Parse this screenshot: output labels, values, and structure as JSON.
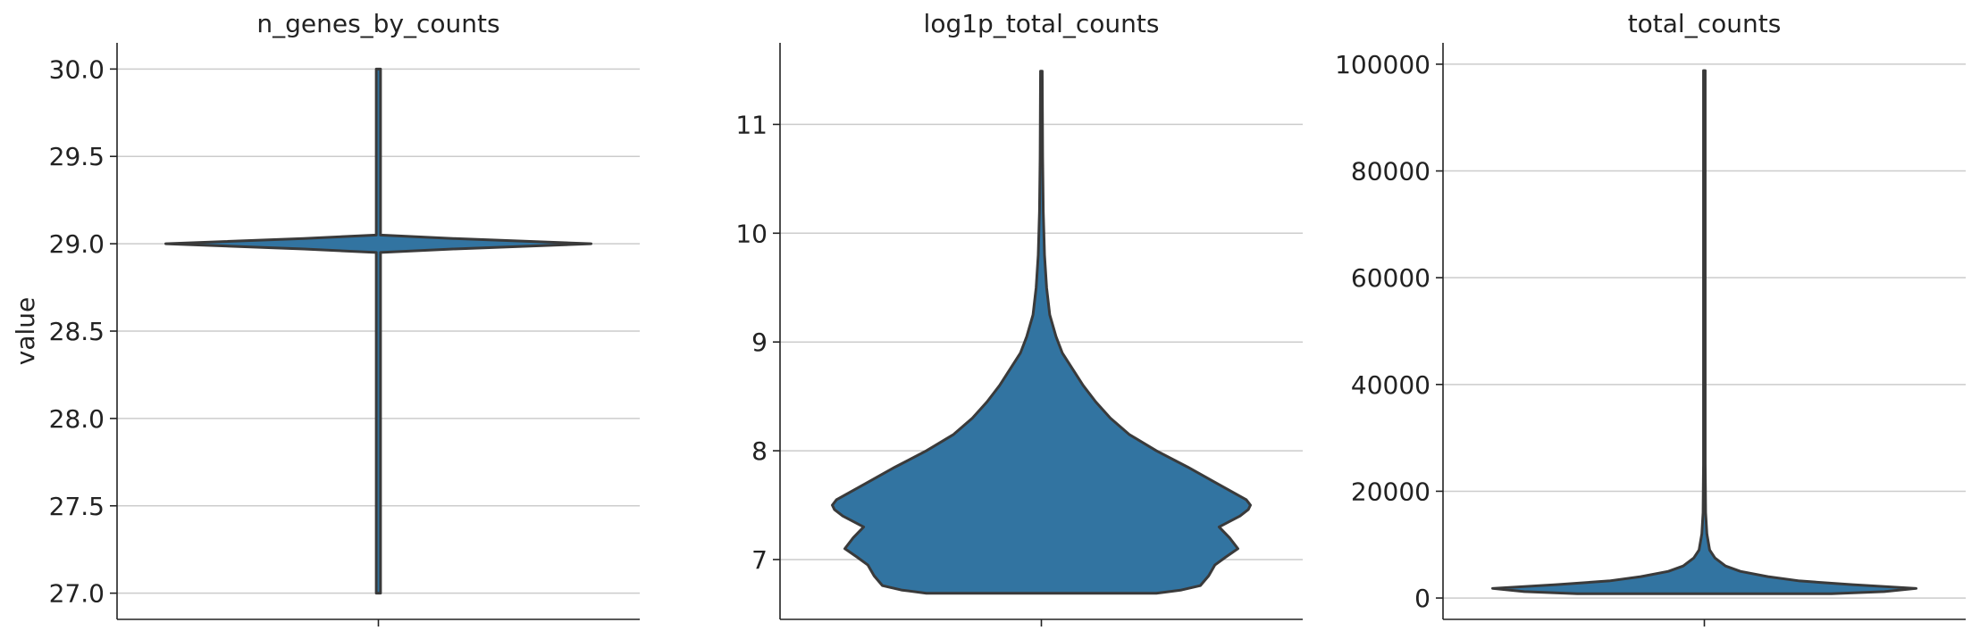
{
  "colors": {
    "violin_fill": "#3274a1",
    "violin_edge": "#3a3a3a",
    "grid": "#cccccc",
    "axis": "#222222",
    "text": "#222222"
  },
  "chart_data": [
    {
      "type": "violin",
      "title": "n_genes_by_counts",
      "xlabel": "",
      "ylabel": "value",
      "ylim": [
        26.85,
        30.15
      ],
      "yticks": [
        27.0,
        27.5,
        28.0,
        28.5,
        29.0,
        29.5,
        30.0
      ],
      "ytick_labels": [
        "27.0",
        "27.5",
        "28.0",
        "28.5",
        "29.0",
        "29.5",
        "30.0"
      ],
      "grid": true,
      "density": [
        {
          "y": 27.0,
          "width": 0.01
        },
        {
          "y": 28.95,
          "width": 0.01
        },
        {
          "y": 28.97,
          "width": 0.35
        },
        {
          "y": 29.0,
          "width": 1.0
        },
        {
          "y": 29.03,
          "width": 0.35
        },
        {
          "y": 29.05,
          "width": 0.01
        },
        {
          "y": 30.0,
          "width": 0.01
        }
      ]
    },
    {
      "type": "violin",
      "title": "log1p_total_counts",
      "xlabel": "",
      "ylabel": "",
      "ylim": [
        6.45,
        11.75
      ],
      "yticks": [
        7,
        8,
        9,
        10,
        11
      ],
      "ytick_labels": [
        "7",
        "8",
        "9",
        "10",
        "11"
      ],
      "grid": true,
      "density": [
        {
          "y": 6.69,
          "width": 0.55
        },
        {
          "y": 6.72,
          "width": 0.67
        },
        {
          "y": 6.76,
          "width": 0.76
        },
        {
          "y": 6.85,
          "width": 0.8
        },
        {
          "y": 6.95,
          "width": 0.83
        },
        {
          "y": 7.02,
          "width": 0.88
        },
        {
          "y": 7.1,
          "width": 0.94
        },
        {
          "y": 7.2,
          "width": 0.9
        },
        {
          "y": 7.3,
          "width": 0.85
        },
        {
          "y": 7.4,
          "width": 0.95
        },
        {
          "y": 7.46,
          "width": 0.99
        },
        {
          "y": 7.5,
          "width": 1.0
        },
        {
          "y": 7.55,
          "width": 0.98
        },
        {
          "y": 7.7,
          "width": 0.84
        },
        {
          "y": 7.85,
          "width": 0.7
        },
        {
          "y": 8.0,
          "width": 0.55
        },
        {
          "y": 8.15,
          "width": 0.42
        },
        {
          "y": 8.3,
          "width": 0.33
        },
        {
          "y": 8.45,
          "width": 0.26
        },
        {
          "y": 8.6,
          "width": 0.2
        },
        {
          "y": 8.75,
          "width": 0.15
        },
        {
          "y": 8.9,
          "width": 0.1
        },
        {
          "y": 9.05,
          "width": 0.07
        },
        {
          "y": 9.25,
          "width": 0.04
        },
        {
          "y": 9.5,
          "width": 0.025
        },
        {
          "y": 9.8,
          "width": 0.015
        },
        {
          "y": 10.2,
          "width": 0.009
        },
        {
          "y": 10.7,
          "width": 0.006
        },
        {
          "y": 11.1,
          "width": 0.005
        },
        {
          "y": 11.49,
          "width": 0.004
        }
      ]
    },
    {
      "type": "violin",
      "title": "total_counts",
      "xlabel": "",
      "ylabel": "",
      "ylim": [
        -4000,
        104000
      ],
      "yticks": [
        0,
        20000,
        40000,
        60000,
        80000,
        100000
      ],
      "ytick_labels": [
        "0",
        "20000",
        "40000",
        "60000",
        "80000",
        "100000"
      ],
      "grid": true,
      "density": [
        {
          "y": 800,
          "width": 0.6
        },
        {
          "y": 1200,
          "width": 0.85
        },
        {
          "y": 1800,
          "width": 1.0
        },
        {
          "y": 2500,
          "width": 0.7
        },
        {
          "y": 3200,
          "width": 0.45
        },
        {
          "y": 4000,
          "width": 0.3
        },
        {
          "y": 5000,
          "width": 0.17
        },
        {
          "y": 6000,
          "width": 0.1
        },
        {
          "y": 7500,
          "width": 0.05
        },
        {
          "y": 9000,
          "width": 0.025
        },
        {
          "y": 12000,
          "width": 0.012
        },
        {
          "y": 16000,
          "width": 0.006
        },
        {
          "y": 25000,
          "width": 0.004
        },
        {
          "y": 50000,
          "width": 0.004
        },
        {
          "y": 75000,
          "width": 0.004
        },
        {
          "y": 98800,
          "width": 0.004
        }
      ]
    }
  ]
}
